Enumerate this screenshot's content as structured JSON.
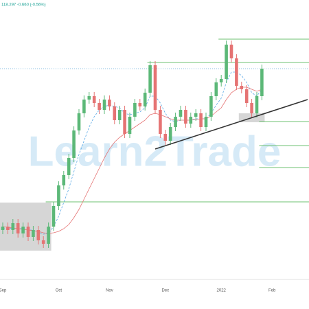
{
  "chart_data": {
    "type": "candlestick",
    "header": "118.297 -0.660 (-0.56%)",
    "watermark": "Learn2Trade",
    "categories": [
      "Sep",
      null,
      null,
      null,
      null,
      null,
      null,
      null,
      null,
      null,
      null,
      "Oct",
      null,
      null,
      null,
      null,
      null,
      null,
      null,
      null,
      null,
      "Nov",
      null,
      null,
      null,
      null,
      null,
      null,
      null,
      null,
      null,
      null,
      "Dec",
      null,
      null,
      null,
      null,
      null,
      null,
      null,
      null,
      null,
      null,
      "2022",
      null,
      null,
      null,
      null,
      null,
      null,
      null,
      null,
      null,
      "Feb"
    ],
    "open": [
      70,
      75,
      70,
      80,
      65,
      75,
      60,
      70,
      55,
      50,
      75,
      105,
      135,
      150,
      175,
      215,
      240,
      260,
      265,
      255,
      245,
      260,
      250,
      230,
      245,
      210,
      235,
      255,
      250,
      270,
      310,
      245,
      210,
      200,
      220,
      235,
      245,
      225,
      235,
      240,
      220,
      235,
      265,
      285,
      290,
      340,
      320,
      280,
      275,
      255,
      240,
      265,
      null,
      null
    ],
    "high": [
      81,
      81,
      86,
      86,
      81,
      81,
      76,
      76,
      61,
      81,
      111,
      141,
      156,
      181,
      221,
      246,
      266,
      271,
      271,
      261,
      266,
      266,
      256,
      251,
      251,
      241,
      261,
      261,
      276,
      316,
      316,
      251,
      216,
      226,
      241,
      251,
      251,
      241,
      246,
      246,
      241,
      271,
      291,
      296,
      346,
      346,
      326,
      286,
      281,
      261,
      271,
      311,
      null,
      null
    ],
    "low": [
      64,
      64,
      64,
      59,
      59,
      54,
      54,
      49,
      44,
      44,
      69,
      99,
      129,
      144,
      169,
      209,
      234,
      254,
      249,
      239,
      239,
      244,
      224,
      224,
      204,
      204,
      229,
      244,
      244,
      264,
      239,
      204,
      194,
      194,
      214,
      229,
      219,
      219,
      229,
      214,
      214,
      229,
      259,
      279,
      284,
      314,
      274,
      269,
      249,
      234,
      234,
      259,
      null,
      null
    ],
    "close": [
      75,
      70,
      80,
      65,
      75,
      60,
      70,
      55,
      50,
      75,
      105,
      135,
      150,
      175,
      215,
      240,
      260,
      265,
      255,
      245,
      260,
      250,
      230,
      245,
      210,
      235,
      255,
      250,
      270,
      310,
      245,
      210,
      200,
      220,
      235,
      245,
      225,
      235,
      240,
      220,
      235,
      265,
      285,
      290,
      340,
      320,
      280,
      275,
      255,
      240,
      265,
      305,
      null,
      null
    ],
    "up_color": "#5cb878",
    "down_color": "#e57373",
    "series": [
      {
        "color": "#5aa9e6",
        "dashed": true,
        "values": [
          72,
          72,
          73,
          72,
          72,
          70,
          70,
          67,
          64,
          65,
          75,
          90,
          110,
          130,
          155,
          180,
          200,
          220,
          235,
          245,
          250,
          252,
          250,
          248,
          240,
          238,
          240,
          242,
          248,
          265,
          265,
          255,
          240,
          230,
          228,
          230,
          230,
          230,
          232,
          232,
          232,
          240,
          252,
          262,
          285,
          300,
          300,
          295,
          285,
          270,
          265,
          275,
          null,
          null
        ]
      },
      {
        "color": "#e57373",
        "dashed": false,
        "values": [
          75,
          74,
          73,
          72,
          71,
          70,
          69,
          68,
          66,
          65,
          66,
          68,
          72,
          78,
          88,
          100,
          115,
          130,
          145,
          160,
          175,
          188,
          198,
          205,
          210,
          215,
          220,
          225,
          230,
          238,
          240,
          238,
          235,
          232,
          230,
          230,
          230,
          230,
          231,
          232,
          232,
          236,
          242,
          248,
          260,
          270,
          275,
          278,
          278,
          275,
          272,
          275,
          null,
          null
        ]
      }
    ],
    "levels": [
      {
        "value": 348,
        "from": 43
      },
      {
        "value": 314,
        "from": 29
      },
      {
        "value": 228,
        "from": 51
      },
      {
        "value": 193,
        "from": 51
      },
      {
        "value": 161,
        "from": 51
      },
      {
        "value": 111,
        "from": 9
      }
    ],
    "level_color": "#6cc070",
    "zones": [
      {
        "from": 0,
        "to": 9,
        "low": 40,
        "high": 110
      },
      {
        "from": 47,
        "to": 51,
        "low": 227,
        "high": 240
      }
    ],
    "trendline": {
      "from": [
        30,
        188
      ],
      "to": [
        60,
        260
      ]
    },
    "ylim": [
      0,
      405
    ]
  }
}
